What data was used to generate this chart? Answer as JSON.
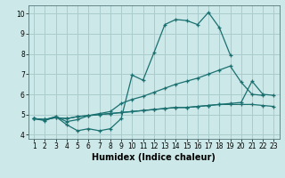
{
  "title": "",
  "xlabel": "Humidex (Indice chaleur)",
  "xlim": [
    0.5,
    23.5
  ],
  "ylim": [
    3.8,
    10.4
  ],
  "yticks": [
    4,
    5,
    6,
    7,
    8,
    9,
    10
  ],
  "xticks": [
    1,
    2,
    3,
    4,
    5,
    6,
    7,
    8,
    9,
    10,
    11,
    12,
    13,
    14,
    15,
    16,
    17,
    18,
    19,
    20,
    21,
    22,
    23
  ],
  "background_color": "#cce8e8",
  "grid_color": "#aacccc",
  "line_color": "#1a7070",
  "series": [
    [
      4.8,
      4.7,
      4.9,
      4.5,
      4.2,
      4.3,
      4.2,
      4.3,
      4.8,
      6.95,
      6.7,
      8.05,
      9.45,
      9.7,
      9.65,
      9.45,
      10.05,
      9.3,
      7.95,
      null,
      null,
      null,
      null
    ],
    [
      4.8,
      4.75,
      4.9,
      4.65,
      4.75,
      4.95,
      5.05,
      5.15,
      5.55,
      5.75,
      5.9,
      6.1,
      6.3,
      6.5,
      6.65,
      6.8,
      7.0,
      7.2,
      7.4,
      6.6,
      6.0,
      5.95,
      null
    ],
    [
      4.8,
      4.75,
      4.85,
      4.8,
      4.9,
      4.95,
      5.0,
      5.05,
      5.1,
      5.15,
      5.2,
      5.25,
      5.3,
      5.35,
      5.35,
      5.4,
      5.45,
      5.5,
      5.5,
      5.5,
      5.5,
      5.45,
      5.4
    ],
    [
      4.8,
      4.75,
      4.85,
      4.8,
      4.9,
      4.95,
      5.0,
      5.05,
      5.1,
      5.15,
      5.2,
      5.25,
      5.3,
      5.35,
      5.35,
      5.4,
      5.45,
      5.5,
      5.55,
      5.6,
      6.65,
      6.0,
      5.95
    ]
  ],
  "xlabel_fontsize": 7,
  "tick_fontsize": 5.5,
  "linewidth": 0.9,
  "markersize": 3
}
